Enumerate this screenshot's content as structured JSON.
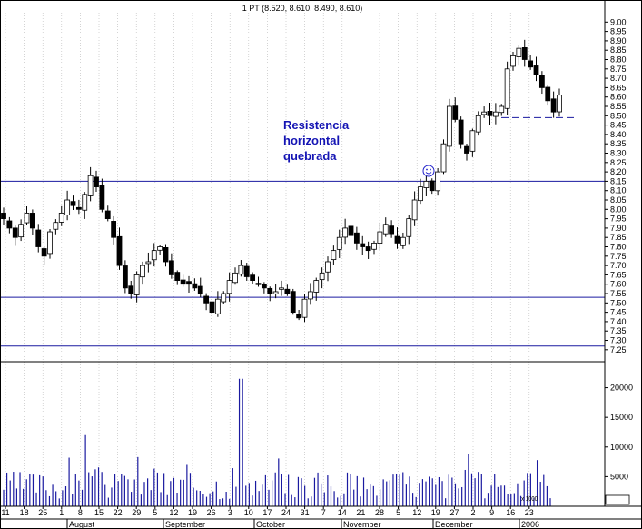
{
  "chart_data": {
    "type": "candlestick",
    "header": "1 PT (8.520, 8.610, 8.490, 8.610)",
    "annotation": [
      "Resistencia",
      "horizontal",
      "quebrada"
    ],
    "price_axis": {
      "ylim": [
        7.22,
        9.05
      ],
      "ticks": [
        "9.00",
        "8.95",
        "8.90",
        "8.85",
        "8.80",
        "8.75",
        "8.70",
        "8.65",
        "8.60",
        "8.55",
        "8.50",
        "8.45",
        "8.40",
        "8.35",
        "8.30",
        "8.25",
        "8.20",
        "8.15",
        "8.10",
        "8.05",
        "8.00",
        "7.95",
        "7.90",
        "7.85",
        "7.80",
        "7.75",
        "7.70",
        "7.65",
        "7.60",
        "7.55",
        "7.50",
        "7.45",
        "7.40",
        "7.35",
        "7.30",
        "7.25"
      ]
    },
    "volume_axis": {
      "ylim": [
        0,
        23000
      ],
      "ticks": [
        "20000",
        "15000",
        "10000",
        "5000"
      ],
      "unit_label": "x 1000"
    },
    "x_day_labels": [
      "11",
      "18",
      "25",
      "1",
      "8",
      "15",
      "22",
      "29",
      "5",
      "12",
      "19",
      "26",
      "3",
      "10",
      "17",
      "24",
      "31",
      "7",
      "14",
      "21",
      "28",
      "5",
      "12",
      "19",
      "27",
      "2",
      "9",
      "16",
      "23"
    ],
    "x_month_labels": [
      "August",
      "September",
      "October",
      "November",
      "December",
      "2006"
    ],
    "horizontal_lines": [
      8.15,
      7.53,
      7.27
    ],
    "support_marker": 8.49,
    "volume_spikes": [
      {
        "at": "26",
        "value": 21500
      },
      {
        "at": "15",
        "value": 12000
      }
    ],
    "price_path": [
      7.95,
      7.9,
      7.85,
      7.92,
      7.98,
      7.9,
      7.8,
      7.75,
      7.88,
      7.93,
      7.98,
      8.05,
      8.02,
      8.0,
      8.08,
      8.18,
      8.12,
      8.0,
      7.95,
      7.85,
      7.7,
      7.58,
      7.55,
      7.65,
      7.7,
      7.72,
      7.78,
      7.8,
      7.72,
      7.65,
      7.62,
      7.6,
      7.6,
      7.58,
      7.55,
      7.5,
      7.45,
      7.52,
      7.55,
      7.62,
      7.66,
      7.7,
      7.64,
      7.62,
      7.6,
      7.58,
      7.55,
      7.56,
      7.58,
      7.55,
      7.45,
      7.42,
      7.52,
      7.56,
      7.62,
      7.66,
      7.72,
      7.78,
      7.85,
      7.9,
      7.86,
      7.82,
      7.8,
      7.78,
      7.82,
      7.88,
      7.92,
      7.87,
      7.82,
      7.85,
      7.95,
      8.05,
      8.12,
      8.15,
      8.1,
      8.2,
      8.35,
      8.55,
      8.48,
      8.35,
      8.3,
      8.42,
      8.5,
      8.52,
      8.5,
      8.52,
      8.55,
      8.75,
      8.82,
      8.86,
      8.8,
      8.76,
      8.72,
      8.65,
      8.58,
      8.52,
      8.61
    ]
  }
}
